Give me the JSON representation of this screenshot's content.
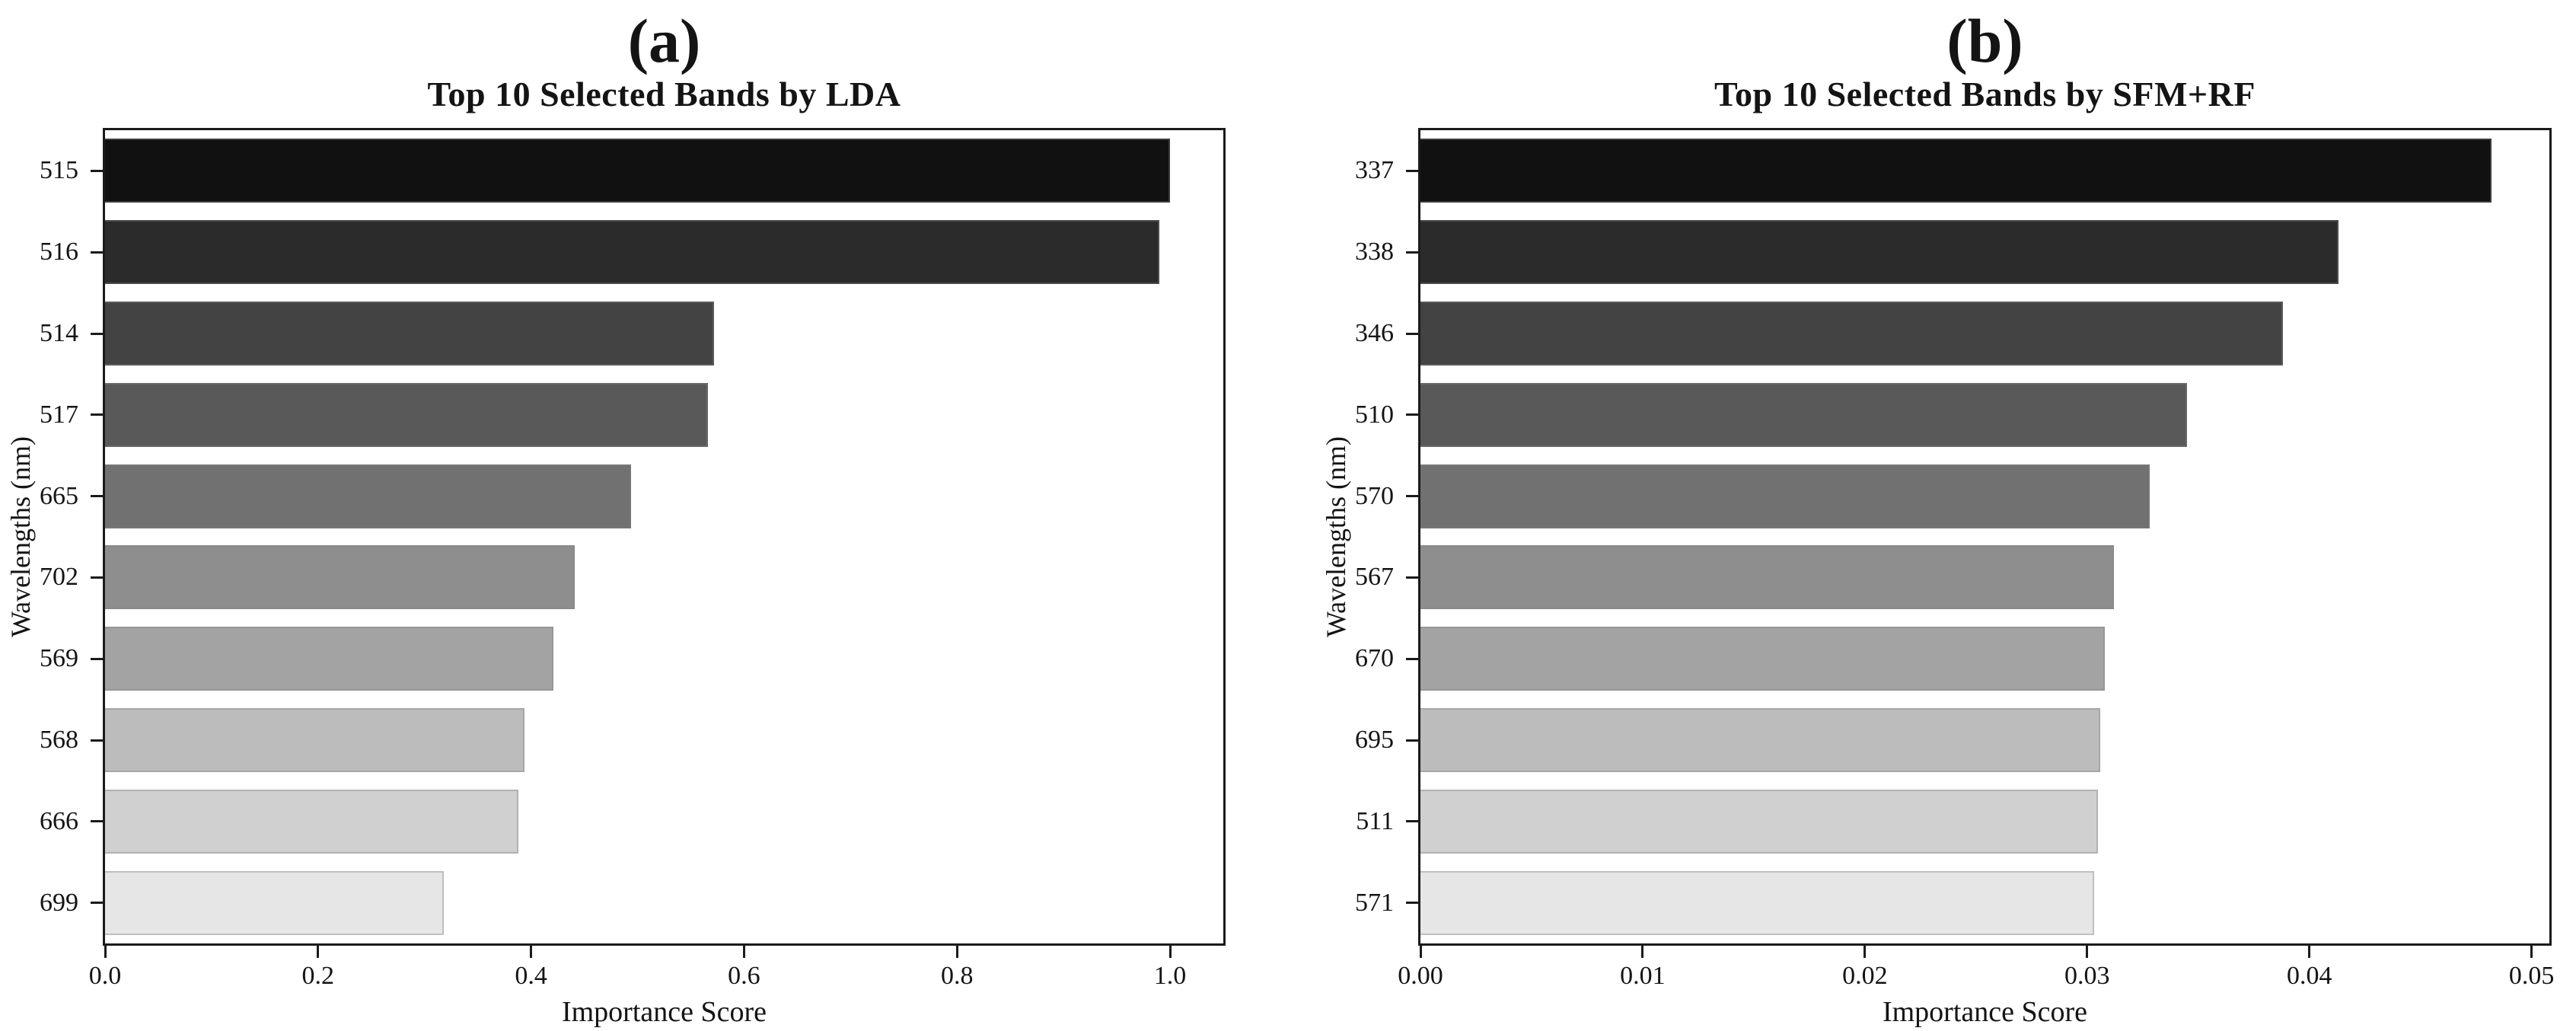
{
  "figure": {
    "background": "#ffffff",
    "spine_color": "#1b1b1b",
    "bar_colors": [
      "#111111",
      "#2b2b2b",
      "#434343",
      "#595959",
      "#717171",
      "#8e8e8e",
      "#a3a3a3",
      "#bcbcbc",
      "#d0d0d0",
      "#e6e6e6"
    ]
  },
  "chart_data": [
    {
      "type": "bar",
      "orientation": "horizontal",
      "panel_label": "(a)",
      "title": "Top 10 Selected Bands by LDA",
      "xlabel": "Importance Score",
      "ylabel": "Wavelengths (nm)",
      "categories": [
        "515",
        "516",
        "514",
        "517",
        "665",
        "702",
        "569",
        "568",
        "666",
        "699"
      ],
      "values": [
        1.0,
        0.99,
        0.572,
        0.566,
        0.494,
        0.441,
        0.421,
        0.394,
        0.388,
        0.318
      ],
      "xlim": [
        0,
        1.05
      ],
      "xticks": [
        0.0,
        0.2,
        0.4,
        0.6,
        0.8,
        1.0
      ],
      "xtick_labels": [
        "0.0",
        "0.2",
        "0.4",
        "0.6",
        "0.8",
        "1.0"
      ],
      "grid": "off",
      "legend": "none"
    },
    {
      "type": "bar",
      "orientation": "horizontal",
      "panel_label": "(b)",
      "title": "Top 10 Selected Bands by SFM+RF",
      "xlabel": "Importance Score",
      "ylabel": "Wavelengths (nm)",
      "categories": [
        "337",
        "338",
        "346",
        "510",
        "570",
        "567",
        "670",
        "695",
        "511",
        "571"
      ],
      "values": [
        0.0482,
        0.0413,
        0.0388,
        0.0345,
        0.0328,
        0.0312,
        0.0308,
        0.0306,
        0.0305,
        0.0303
      ],
      "xlim": [
        0,
        0.0508
      ],
      "xticks": [
        0.0,
        0.01,
        0.02,
        0.03,
        0.04,
        0.05
      ],
      "xtick_labels": [
        "0.00",
        "0.01",
        "0.02",
        "0.03",
        "0.04",
        "0.05"
      ],
      "grid": "off",
      "legend": "none"
    }
  ]
}
